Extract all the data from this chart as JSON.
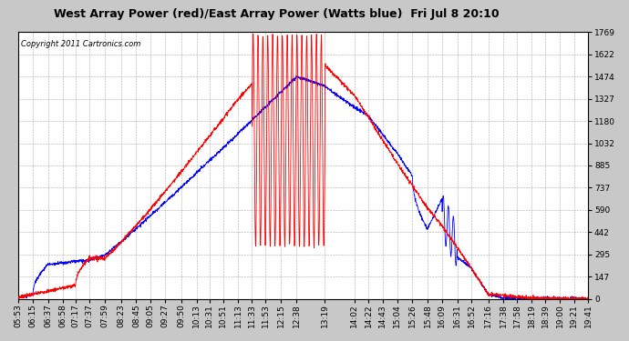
{
  "title": "West Array Power (red)/East Array Power (Watts blue)  Fri Jul 8 20:10",
  "copyright": "Copyright 2011 Cartronics.com",
  "background_color": "#c8c8c8",
  "plot_bg_color": "#ffffff",
  "y_ticks": [
    0.0,
    147.4,
    294.9,
    442.3,
    589.7,
    737.2,
    884.6,
    1032.0,
    1179.5,
    1326.9,
    1474.3,
    1621.8,
    1769.2
  ],
  "ylim": [
    0,
    1769.2
  ],
  "x_labels": [
    "05:53",
    "06:15",
    "06:37",
    "06:58",
    "07:17",
    "07:37",
    "07:59",
    "08:23",
    "08:45",
    "09:05",
    "09:27",
    "09:50",
    "10:13",
    "10:31",
    "10:51",
    "11:13",
    "11:33",
    "11:53",
    "12:15",
    "12:38",
    "13:19",
    "14:02",
    "14:22",
    "14:43",
    "15:04",
    "15:26",
    "15:48",
    "16:09",
    "16:31",
    "16:52",
    "17:16",
    "17:38",
    "17:58",
    "18:19",
    "18:39",
    "19:00",
    "19:21",
    "19:41"
  ],
  "red_color": "#ff0000",
  "blue_color": "#0000ff",
  "grid_color": "#aaaaaa",
  "title_fontsize": 9,
  "copyright_fontsize": 6,
  "tick_fontsize": 6.5
}
